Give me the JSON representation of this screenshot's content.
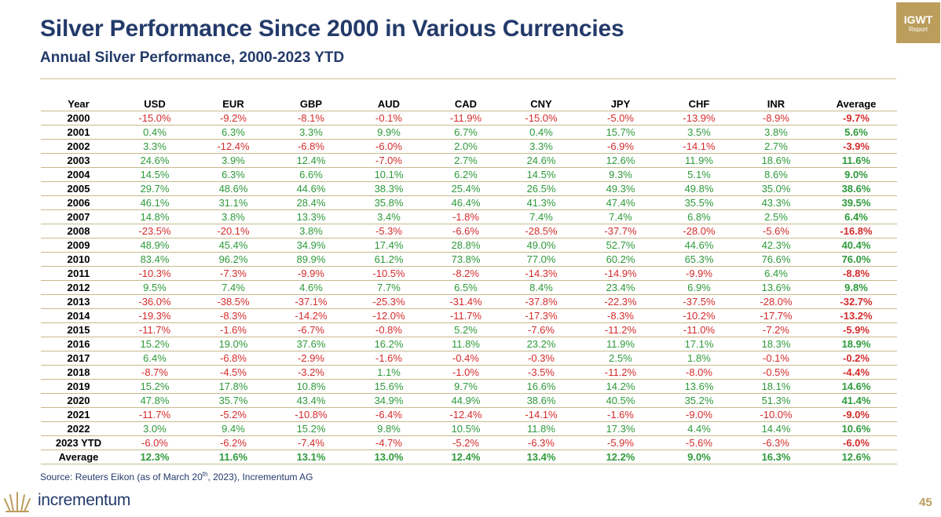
{
  "header": {
    "title": "Silver Performance Since 2000 in Various Currencies",
    "subtitle": "Annual Silver Performance, 2000-2023 YTD"
  },
  "badge": {
    "line1": "IGWT",
    "line2": "Report"
  },
  "table": {
    "columns": [
      "Year",
      "USD",
      "EUR",
      "GBP",
      "AUD",
      "CAD",
      "CNY",
      "JPY",
      "CHF",
      "INR",
      "Average"
    ],
    "rows": [
      [
        "2000",
        "-15.0%",
        "-9.2%",
        "-8.1%",
        "-0.1%",
        "-11.9%",
        "-15.0%",
        "-5.0%",
        "-13.9%",
        "-8.9%",
        "-9.7%"
      ],
      [
        "2001",
        "0.4%",
        "6.3%",
        "3.3%",
        "9.9%",
        "6.7%",
        "0.4%",
        "15.7%",
        "3.5%",
        "3.8%",
        "5.6%"
      ],
      [
        "2002",
        "3.3%",
        "-12.4%",
        "-6.8%",
        "-6.0%",
        "2.0%",
        "3.3%",
        "-6.9%",
        "-14.1%",
        "2.7%",
        "-3.9%"
      ],
      [
        "2003",
        "24.6%",
        "3.9%",
        "12.4%",
        "-7.0%",
        "2.7%",
        "24.6%",
        "12.6%",
        "11.9%",
        "18.6%",
        "11.6%"
      ],
      [
        "2004",
        "14.5%",
        "6.3%",
        "6.6%",
        "10.1%",
        "6.2%",
        "14.5%",
        "9.3%",
        "5.1%",
        "8.6%",
        "9.0%"
      ],
      [
        "2005",
        "29.7%",
        "48.6%",
        "44.6%",
        "38.3%",
        "25.4%",
        "26.5%",
        "49.3%",
        "49.8%",
        "35.0%",
        "38.6%"
      ],
      [
        "2006",
        "46.1%",
        "31.1%",
        "28.4%",
        "35.8%",
        "46.4%",
        "41.3%",
        "47.4%",
        "35.5%",
        "43.3%",
        "39.5%"
      ],
      [
        "2007",
        "14.8%",
        "3.8%",
        "13.3%",
        "3.4%",
        "-1.8%",
        "7.4%",
        "7.4%",
        "6.8%",
        "2.5%",
        "6.4%"
      ],
      [
        "2008",
        "-23.5%",
        "-20.1%",
        "3.8%",
        "-5.3%",
        "-6.6%",
        "-28.5%",
        "-37.7%",
        "-28.0%",
        "-5.6%",
        "-16.8%"
      ],
      [
        "2009",
        "48.9%",
        "45.4%",
        "34.9%",
        "17.4%",
        "28.8%",
        "49.0%",
        "52.7%",
        "44.6%",
        "42.3%",
        "40.4%"
      ],
      [
        "2010",
        "83.4%",
        "96.2%",
        "89.9%",
        "61.2%",
        "73.8%",
        "77.0%",
        "60.2%",
        "65.3%",
        "76.6%",
        "76.0%"
      ],
      [
        "2011",
        "-10.3%",
        "-7.3%",
        "-9.9%",
        "-10.5%",
        "-8.2%",
        "-14.3%",
        "-14.9%",
        "-9.9%",
        "6.4%",
        "-8.8%"
      ],
      [
        "2012",
        "9.5%",
        "7.4%",
        "4.6%",
        "7.7%",
        "6.5%",
        "8.4%",
        "23.4%",
        "6.9%",
        "13.6%",
        "9.8%"
      ],
      [
        "2013",
        "-36.0%",
        "-38.5%",
        "-37.1%",
        "-25.3%",
        "-31.4%",
        "-37.8%",
        "-22.3%",
        "-37.5%",
        "-28.0%",
        "-32.7%"
      ],
      [
        "2014",
        "-19.3%",
        "-8.3%",
        "-14.2%",
        "-12.0%",
        "-11.7%",
        "-17.3%",
        "-8.3%",
        "-10.2%",
        "-17.7%",
        "-13.2%"
      ],
      [
        "2015",
        "-11.7%",
        "-1.6%",
        "-6.7%",
        "-0.8%",
        "5.2%",
        "-7.6%",
        "-11.2%",
        "-11.0%",
        "-7.2%",
        "-5.9%"
      ],
      [
        "2016",
        "15.2%",
        "19.0%",
        "37.6%",
        "16.2%",
        "11.8%",
        "23.2%",
        "11.9%",
        "17.1%",
        "18.3%",
        "18.9%"
      ],
      [
        "2017",
        "6.4%",
        "-6.8%",
        "-2.9%",
        "-1.6%",
        "-0.4%",
        "-0.3%",
        "2.5%",
        "1.8%",
        "-0.1%",
        "-0.2%"
      ],
      [
        "2018",
        "-8.7%",
        "-4.5%",
        "-3.2%",
        "1.1%",
        "-1.0%",
        "-3.5%",
        "-11.2%",
        "-8.0%",
        "-0.5%",
        "-4.4%"
      ],
      [
        "2019",
        "15.2%",
        "17.8%",
        "10.8%",
        "15.6%",
        "9.7%",
        "16.6%",
        "14.2%",
        "13.6%",
        "18.1%",
        "14.6%"
      ],
      [
        "2020",
        "47.8%",
        "35.7%",
        "43.4%",
        "34.9%",
        "44.9%",
        "38.6%",
        "40.5%",
        "35.2%",
        "51.3%",
        "41.4%"
      ],
      [
        "2021",
        "-11.7%",
        "-5.2%",
        "-10.8%",
        "-6.4%",
        "-12.4%",
        "-14.1%",
        "-1.6%",
        "-9.0%",
        "-10.0%",
        "-9.0%"
      ],
      [
        "2022",
        "3.0%",
        "9.4%",
        "15.2%",
        "9.8%",
        "10.5%",
        "11.8%",
        "17.3%",
        "4.4%",
        "14.4%",
        "10.6%"
      ],
      [
        "2023 YTD",
        "-6.0%",
        "-6.2%",
        "-7.4%",
        "-4.7%",
        "-5.2%",
        "-6.3%",
        "-5.9%",
        "-5.6%",
        "-6.3%",
        "-6.0%"
      ]
    ],
    "average_row": [
      "Average",
      "12.3%",
      "11.6%",
      "13.1%",
      "13.0%",
      "12.4%",
      "13.4%",
      "12.2%",
      "9.0%",
      "16.3%",
      "12.6%"
    ]
  },
  "footer": {
    "source_prefix": "Source: Reuters Eikon (as of March 20",
    "source_sup": "th",
    "source_suffix": ", 2023), Incrementum AG",
    "brand": "incrementum",
    "page_number": "45"
  },
  "colors": {
    "title": "#233a6a",
    "accent_gold": "#bb9d5c",
    "positive": "#2e9a3a",
    "negative": "#d52b2b"
  }
}
